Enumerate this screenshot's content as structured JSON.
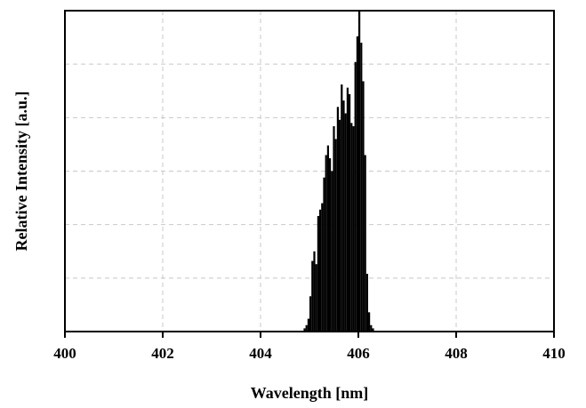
{
  "chart_data": {
    "type": "bar",
    "title": "",
    "xlabel": "Wavelength [nm]",
    "ylabel": "Relative Intensity [a.u.]",
    "xlim": [
      400,
      410
    ],
    "ylim": [
      0,
      1.0
    ],
    "xticks": [
      "400",
      "402",
      "404",
      "406",
      "408",
      "410"
    ],
    "y_tick_labels_shown": false,
    "grid": "dashed",
    "legend": "none",
    "bar_color": "#000000",
    "grid_color": "#c8c8c8",
    "x": [
      404.9,
      404.94,
      404.98,
      405.02,
      405.06,
      405.1,
      405.14,
      405.18,
      405.22,
      405.26,
      405.3,
      405.34,
      405.38,
      405.42,
      405.46,
      405.5,
      405.54,
      405.58,
      405.62,
      405.66,
      405.7,
      405.74,
      405.78,
      405.82,
      405.86,
      405.9,
      405.94,
      405.98,
      406.02,
      406.06,
      406.1,
      406.14,
      406.18,
      406.22,
      406.26,
      406.3
    ],
    "values": [
      0.01,
      0.02,
      0.04,
      0.11,
      0.22,
      0.25,
      0.21,
      0.36,
      0.38,
      0.4,
      0.48,
      0.55,
      0.58,
      0.54,
      0.5,
      0.64,
      0.6,
      0.7,
      0.66,
      0.77,
      0.72,
      0.68,
      0.76,
      0.74,
      0.65,
      0.64,
      0.84,
      0.92,
      1.0,
      0.9,
      0.78,
      0.55,
      0.18,
      0.06,
      0.02,
      0.01
    ]
  }
}
